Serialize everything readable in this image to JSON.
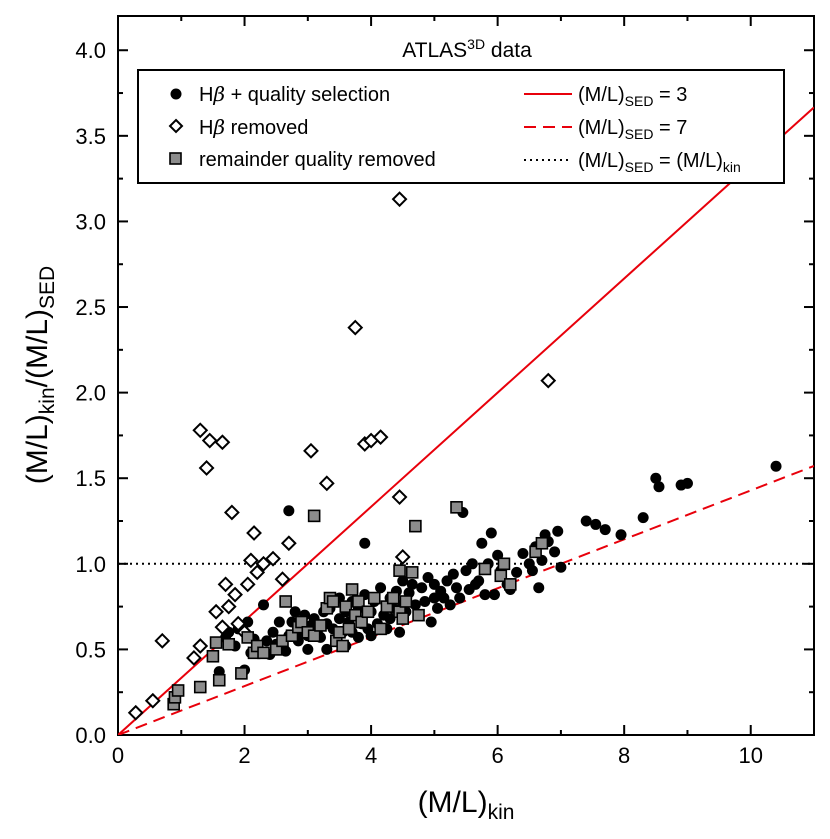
{
  "chart_data": {
    "type": "scatter",
    "title": "ATLAS3D data",
    "title_main": "ATLAS",
    "title_sup": "3D",
    "title_rest": " data",
    "xlabel": "(M/L)kin",
    "xlabel_main": "(M/L)",
    "xlabel_sub": "kin",
    "ylabel": "(M/L)kin/(M/L)SED",
    "ylabel_parts": [
      "(M/L)",
      "kin",
      "/(M/L)",
      "SED"
    ],
    "xlim": [
      0,
      11
    ],
    "ylim": [
      0,
      4.2
    ],
    "x_ticks": [
      0,
      2,
      4,
      6,
      8,
      10
    ],
    "x_tick_labels": [
      "0",
      "2",
      "4",
      "6",
      "8",
      "10"
    ],
    "y_ticks": [
      0,
      0.5,
      1,
      1.5,
      2,
      2.5,
      3,
      3.5,
      4
    ],
    "y_tick_labels": [
      "0.0",
      "0.5",
      "1.0",
      "1.5",
      "2.0",
      "2.5",
      "3.0",
      "3.5",
      "4.0"
    ],
    "legend_position": "top",
    "legend_left": [
      {
        "marker": "circle",
        "label": "Hβ + quality selection",
        "label_main": "H",
        "label_beta": "β",
        "label_rest": " + quality selection"
      },
      {
        "marker": "diamond",
        "label": "Hβ removed",
        "label_main": "H",
        "label_beta": "β",
        "label_rest": " removed"
      },
      {
        "marker": "square",
        "label": "remainder quality removed",
        "label_main": "remainder quality removed"
      }
    ],
    "legend_right": [
      {
        "style": "solid",
        "label": "(M/L)SED = 3",
        "parts": [
          "(M/L)",
          "SED",
          " = 3"
        ]
      },
      {
        "style": "dashed",
        "label": "(M/L)SED = 7",
        "parts": [
          "(M/L)",
          "SED",
          " = 7"
        ]
      },
      {
        "style": "dotted",
        "label": "(M/L)SED = (M/L)kin",
        "parts": [
          "(M/L)",
          "SED",
          " = (M/L)",
          "kin"
        ]
      }
    ],
    "lines": [
      {
        "name": "(M/L)SED = 3",
        "slope": 0.3333,
        "color": "#e8000b",
        "style": "solid"
      },
      {
        "name": "(M/L)SED = 7",
        "slope": 0.142857,
        "color": "#e8000b",
        "style": "dashed"
      },
      {
        "name": "(M/L)SED = (M/L)kin",
        "constant": 1.0,
        "color": "#000000",
        "style": "dotted"
      }
    ],
    "series": [
      {
        "name": "Hβ + quality selection",
        "marker": "circle",
        "points": [
          [
            1.6,
            0.37
          ],
          [
            1.7,
            0.57
          ],
          [
            1.75,
            0.6
          ],
          [
            1.85,
            0.52
          ],
          [
            1.9,
            0.62
          ],
          [
            2.0,
            0.38
          ],
          [
            2.0,
            0.6
          ],
          [
            2.05,
            0.66
          ],
          [
            2.1,
            0.48
          ],
          [
            2.15,
            0.56
          ],
          [
            2.2,
            0.5
          ],
          [
            2.3,
            0.76
          ],
          [
            2.35,
            0.55
          ],
          [
            2.4,
            0.47
          ],
          [
            2.45,
            0.6
          ],
          [
            2.5,
            0.53
          ],
          [
            2.55,
            0.66
          ],
          [
            2.6,
            0.55
          ],
          [
            2.65,
            0.49
          ],
          [
            2.7,
            1.31
          ],
          [
            2.7,
            0.58
          ],
          [
            2.75,
            0.66
          ],
          [
            2.8,
            0.72
          ],
          [
            2.85,
            0.55
          ],
          [
            2.9,
            0.6
          ],
          [
            2.95,
            0.7
          ],
          [
            3.0,
            0.58
          ],
          [
            3.0,
            0.5
          ],
          [
            3.05,
            0.64
          ],
          [
            3.1,
            0.68
          ],
          [
            3.15,
            0.6
          ],
          [
            3.2,
            0.57
          ],
          [
            3.25,
            0.72
          ],
          [
            3.3,
            0.5
          ],
          [
            3.3,
            0.65
          ],
          [
            3.35,
            0.74
          ],
          [
            3.4,
            0.62
          ],
          [
            3.45,
            0.55
          ],
          [
            3.5,
            0.68
          ],
          [
            3.5,
            0.8
          ],
          [
            3.55,
            0.6
          ],
          [
            3.6,
            0.52
          ],
          [
            3.6,
            0.72
          ],
          [
            3.65,
            0.66
          ],
          [
            3.7,
            0.78
          ],
          [
            3.7,
            0.6
          ],
          [
            3.75,
            0.7
          ],
          [
            3.8,
            0.74
          ],
          [
            3.8,
            0.57
          ],
          [
            3.85,
            0.65
          ],
          [
            3.9,
            1.12
          ],
          [
            3.9,
            0.82
          ],
          [
            3.95,
            0.62
          ],
          [
            4.0,
            0.72
          ],
          [
            4.0,
            0.58
          ],
          [
            4.05,
            0.78
          ],
          [
            4.1,
            0.65
          ],
          [
            4.15,
            0.86
          ],
          [
            4.2,
            0.7
          ],
          [
            4.25,
            0.62
          ],
          [
            4.3,
            0.8
          ],
          [
            4.3,
            0.68
          ],
          [
            4.35,
            0.74
          ],
          [
            4.4,
            0.84
          ],
          [
            4.45,
            0.6
          ],
          [
            4.5,
            0.76
          ],
          [
            4.5,
            0.9
          ],
          [
            4.55,
            0.72
          ],
          [
            4.6,
            0.83
          ],
          [
            4.65,
            0.88
          ],
          [
            4.7,
            0.76
          ],
          [
            4.75,
            0.7
          ],
          [
            4.8,
            0.86
          ],
          [
            4.85,
            0.78
          ],
          [
            4.9,
            0.92
          ],
          [
            4.95,
            0.66
          ],
          [
            5.0,
            0.8
          ],
          [
            5.0,
            0.88
          ],
          [
            5.05,
            0.74
          ],
          [
            5.1,
            0.84
          ],
          [
            5.15,
            0.8
          ],
          [
            5.2,
            0.9
          ],
          [
            5.25,
            0.76
          ],
          [
            5.3,
            0.94
          ],
          [
            5.35,
            0.86
          ],
          [
            5.4,
            0.8
          ],
          [
            5.45,
            1.3
          ],
          [
            5.5,
            0.96
          ],
          [
            5.55,
            0.85
          ],
          [
            5.6,
            1.0
          ],
          [
            5.65,
            0.88
          ],
          [
            5.7,
            0.9
          ],
          [
            5.75,
            1.12
          ],
          [
            5.8,
            0.82
          ],
          [
            5.85,
            1.0
          ],
          [
            5.9,
            1.18
          ],
          [
            5.95,
            0.82
          ],
          [
            6.0,
            1.05
          ],
          [
            6.05,
            0.96
          ],
          [
            6.1,
            1.0
          ],
          [
            6.15,
            0.88
          ],
          [
            6.2,
            0.85
          ],
          [
            6.3,
            0.95
          ],
          [
            6.4,
            1.06
          ],
          [
            6.5,
            1.0
          ],
          [
            6.55,
            0.96
          ],
          [
            6.6,
            1.1
          ],
          [
            6.65,
            0.86
          ],
          [
            6.7,
            1.02
          ],
          [
            6.75,
            1.17
          ],
          [
            6.8,
            1.13
          ],
          [
            6.9,
            1.07
          ],
          [
            6.95,
            1.19
          ],
          [
            7.0,
            0.98
          ],
          [
            7.4,
            1.25
          ],
          [
            7.55,
            1.23
          ],
          [
            7.7,
            1.2
          ],
          [
            7.95,
            1.17
          ],
          [
            8.3,
            1.27
          ],
          [
            8.5,
            1.5
          ],
          [
            8.55,
            1.45
          ],
          [
            8.9,
            1.46
          ],
          [
            9.0,
            1.47
          ],
          [
            10.4,
            1.57
          ]
        ]
      },
      {
        "name": "Hβ removed",
        "marker": "diamond",
        "points": [
          [
            0.28,
            0.13
          ],
          [
            0.55,
            0.2
          ],
          [
            0.7,
            0.55
          ],
          [
            1.2,
            0.45
          ],
          [
            1.3,
            0.52
          ],
          [
            1.3,
            1.78
          ],
          [
            1.4,
            1.56
          ],
          [
            1.45,
            1.72
          ],
          [
            1.55,
            0.72
          ],
          [
            1.65,
            1.71
          ],
          [
            1.65,
            0.63
          ],
          [
            1.7,
            0.88
          ],
          [
            1.75,
            0.75
          ],
          [
            1.8,
            1.3
          ],
          [
            1.85,
            0.82
          ],
          [
            1.9,
            0.65
          ],
          [
            2.0,
            0.6
          ],
          [
            2.05,
            0.88
          ],
          [
            2.1,
            1.02
          ],
          [
            2.15,
            1.18
          ],
          [
            2.2,
            0.95
          ],
          [
            2.3,
            1.0
          ],
          [
            2.45,
            1.03
          ],
          [
            2.6,
            0.91
          ],
          [
            2.7,
            1.12
          ],
          [
            3.05,
            1.66
          ],
          [
            3.3,
            1.47
          ],
          [
            3.75,
            2.38
          ],
          [
            3.9,
            1.7
          ],
          [
            4.0,
            1.72
          ],
          [
            4.15,
            1.74
          ],
          [
            4.45,
            3.13
          ],
          [
            4.45,
            1.39
          ],
          [
            4.5,
            1.04
          ],
          [
            6.8,
            2.07
          ]
        ]
      },
      {
        "name": "remainder quality removed",
        "marker": "square",
        "points": [
          [
            0.88,
            0.18
          ],
          [
            0.9,
            0.22
          ],
          [
            0.95,
            0.26
          ],
          [
            1.3,
            0.28
          ],
          [
            1.5,
            0.46
          ],
          [
            1.55,
            0.54
          ],
          [
            1.6,
            0.32
          ],
          [
            1.75,
            0.53
          ],
          [
            1.95,
            0.36
          ],
          [
            2.05,
            0.57
          ],
          [
            2.15,
            0.48
          ],
          [
            2.2,
            0.52
          ],
          [
            2.3,
            0.48
          ],
          [
            2.5,
            0.5
          ],
          [
            2.6,
            0.55
          ],
          [
            2.65,
            0.78
          ],
          [
            2.75,
            0.58
          ],
          [
            2.85,
            0.63
          ],
          [
            2.9,
            0.66
          ],
          [
            3.0,
            0.6
          ],
          [
            3.1,
            0.58
          ],
          [
            3.1,
            1.28
          ],
          [
            3.2,
            0.64
          ],
          [
            3.3,
            0.74
          ],
          [
            3.35,
            0.8
          ],
          [
            3.4,
            0.78
          ],
          [
            3.45,
            0.55
          ],
          [
            3.5,
            0.6
          ],
          [
            3.55,
            0.52
          ],
          [
            3.6,
            0.75
          ],
          [
            3.65,
            0.62
          ],
          [
            3.7,
            0.85
          ],
          [
            3.75,
            0.7
          ],
          [
            3.8,
            0.78
          ],
          [
            3.85,
            0.66
          ],
          [
            3.95,
            0.72
          ],
          [
            4.05,
            0.8
          ],
          [
            4.15,
            0.62
          ],
          [
            4.25,
            0.75
          ],
          [
            4.35,
            0.8
          ],
          [
            4.45,
            0.72
          ],
          [
            4.45,
            0.96
          ],
          [
            4.5,
            0.68
          ],
          [
            4.55,
            0.78
          ],
          [
            4.65,
            0.95
          ],
          [
            4.7,
            1.22
          ],
          [
            4.75,
            0.7
          ],
          [
            5.35,
            1.33
          ],
          [
            5.8,
            0.97
          ],
          [
            6.05,
            0.93
          ],
          [
            6.1,
            1.0
          ],
          [
            6.2,
            0.88
          ],
          [
            6.6,
            1.07
          ],
          [
            6.7,
            1.12
          ]
        ]
      }
    ]
  }
}
